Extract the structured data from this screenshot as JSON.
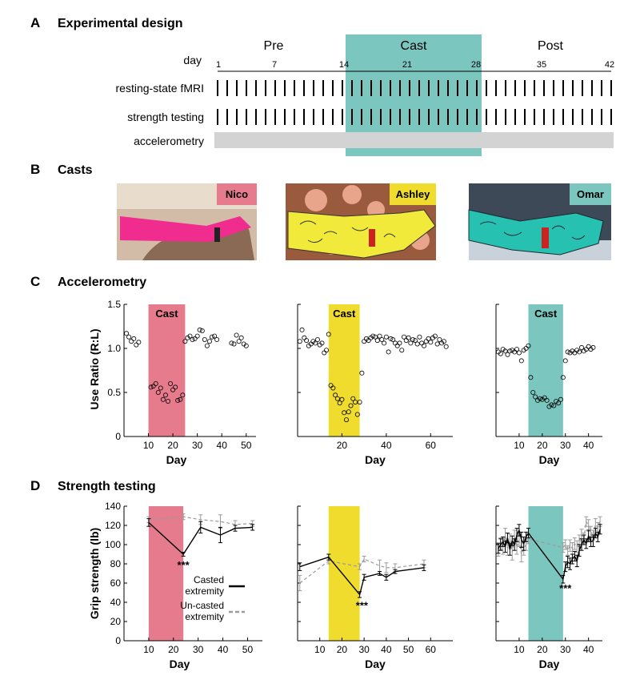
{
  "colors": {
    "nico": "#e77b8e",
    "ashley": "#efdc2c",
    "omar": "#7bc6bf",
    "accel_bar": "#d3d3d3",
    "casted": "#000000",
    "uncasted": "#9a9a9a"
  },
  "panel_a": {
    "letter": "A",
    "title": "Experimental design",
    "phases": [
      "Pre",
      "Cast",
      "Post"
    ],
    "day_label": "day",
    "day_ticks": [
      "1",
      "7",
      "14",
      "21",
      "28",
      "35",
      "42"
    ],
    "rows": [
      "resting-state fMRI",
      "strength testing",
      "accelerometry"
    ]
  },
  "panel_b": {
    "letter": "B",
    "title": "Casts",
    "names": [
      "Nico",
      "Ashley",
      "Omar"
    ]
  },
  "panel_c": {
    "letter": "C",
    "title": "Accelerometry",
    "ylabel": "Use Ratio (R:L)",
    "xlabel": "Day",
    "cast_label": "Cast"
  },
  "panel_d": {
    "letter": "D",
    "title": "Strength testing",
    "ylabel": "Grip strength (lb)",
    "xlabel": "Day",
    "legend_casted": [
      "Casted",
      "extremity"
    ],
    "legend_uncasted": [
      "Un-casted",
      "extremity"
    ],
    "signif": "***"
  },
  "chart_data": [
    {
      "type": "scatter",
      "title": "Accelerometry - Nico",
      "xlabel": "Day",
      "ylabel": "Use Ratio (R:L)",
      "xlim": [
        0,
        54
      ],
      "ylim": [
        0,
        1.5
      ],
      "xticks": [
        10,
        20,
        30,
        40,
        50
      ],
      "yticks": [
        0,
        0.5,
        1.0,
        1.5
      ],
      "cast_period": [
        10,
        25
      ],
      "x": [
        1,
        2,
        3,
        4,
        5,
        6,
        11,
        12,
        13,
        14,
        15,
        16,
        17,
        18,
        19,
        20,
        21,
        22,
        23,
        24,
        25,
        26,
        27,
        28,
        29,
        30,
        31,
        32,
        33,
        34,
        35,
        36,
        37,
        38,
        44,
        45,
        46,
        47,
        48,
        49,
        50
      ],
      "y": [
        1.17,
        1.13,
        1.08,
        1.11,
        1.04,
        1.07,
        0.56,
        0.57,
        0.6,
        0.5,
        0.55,
        0.42,
        0.47,
        0.4,
        0.6,
        0.53,
        0.56,
        0.41,
        0.42,
        0.47,
        1.08,
        1.12,
        1.14,
        1.1,
        1.11,
        1.14,
        1.21,
        1.2,
        1.1,
        1.03,
        1.08,
        1.13,
        1.14,
        1.1,
        1.06,
        1.05,
        1.15,
        1.08,
        1.12,
        1.05,
        1.03
      ]
    },
    {
      "type": "scatter",
      "title": "Accelerometry - Ashley",
      "xlabel": "Day",
      "ylabel": "Use Ratio (R:L)",
      "xlim": [
        0,
        70
      ],
      "ylim": [
        0,
        1.5
      ],
      "xticks": [
        20,
        40,
        60
      ],
      "yticks": [
        0,
        0.5,
        1.0,
        1.5
      ],
      "cast_period": [
        14,
        28
      ],
      "x": [
        1,
        2,
        3,
        4,
        5,
        6,
        7,
        8,
        9,
        10,
        11,
        12,
        13,
        14,
        15,
        16,
        17,
        18,
        19,
        20,
        21,
        22,
        23,
        24,
        25,
        26,
        27,
        28,
        29,
        30,
        31,
        32,
        33,
        34,
        35,
        36,
        37,
        38,
        39,
        40,
        41,
        42,
        43,
        44,
        45,
        46,
        47,
        48,
        49,
        50,
        51,
        52,
        53,
        54,
        55,
        56,
        57,
        58,
        59,
        60,
        61,
        62,
        63,
        64,
        65,
        66,
        67
      ],
      "y": [
        1.08,
        1.21,
        1.12,
        1.09,
        1.03,
        1.05,
        1.08,
        1.06,
        1.1,
        1.04,
        1.06,
        0.95,
        0.98,
        1.16,
        0.58,
        0.55,
        0.47,
        0.43,
        0.38,
        0.42,
        0.27,
        0.19,
        0.28,
        0.35,
        0.43,
        0.39,
        0.25,
        0.39,
        0.72,
        1.08,
        1.11,
        1.09,
        1.12,
        1.14,
        1.13,
        1.09,
        1.14,
        1.1,
        1.06,
        1.13,
        0.96,
        1.11,
        1.1,
        1.06,
        1.03,
        1.06,
        0.98,
        1.13,
        1.09,
        1.12,
        1.06,
        1.1,
        1.09,
        1.05,
        1.13,
        1.06,
        1.03,
        1.08,
        1.11,
        1.07,
        1.12,
        1.14,
        1.05,
        1.1,
        1.06,
        1.08,
        1.02
      ]
    },
    {
      "type": "scatter",
      "title": "Accelerometry - Omar",
      "xlabel": "Day",
      "ylabel": "Use Ratio (R:L)",
      "xlim": [
        0,
        46
      ],
      "ylim": [
        0,
        1.5
      ],
      "xticks": [
        10,
        20,
        30,
        40
      ],
      "yticks": [
        0,
        0.5,
        1.0,
        1.5
      ],
      "cast_period": [
        14,
        29
      ],
      "x": [
        1,
        2,
        3,
        4,
        5,
        6,
        7,
        8,
        9,
        10,
        11,
        12,
        13,
        14,
        15,
        16,
        17,
        18,
        19,
        20,
        21,
        22,
        23,
        24,
        25,
        26,
        27,
        28,
        29,
        30,
        31,
        32,
        33,
        34,
        35,
        36,
        37,
        38,
        39,
        40,
        41,
        42
      ],
      "y": [
        0.96,
        0.94,
        0.99,
        0.97,
        0.93,
        0.97,
        0.98,
        0.96,
        0.99,
        0.95,
        0.86,
        0.98,
        1.0,
        1.03,
        0.67,
        0.5,
        0.45,
        0.41,
        0.43,
        0.42,
        0.44,
        0.41,
        0.34,
        0.36,
        0.35,
        0.4,
        0.38,
        0.42,
        0.67,
        0.86,
        0.96,
        0.95,
        0.97,
        0.95,
        0.98,
        0.96,
        1.01,
        0.97,
        0.99,
        1.02,
        0.99,
        1.01
      ]
    },
    {
      "type": "line",
      "title": "Strength testing - Nico",
      "xlabel": "Day",
      "ylabel": "Grip strength (lb)",
      "xlim": [
        0,
        56
      ],
      "ylim": [
        0,
        140
      ],
      "xticks": [
        10,
        20,
        30,
        40,
        50
      ],
      "yticks": [
        0,
        20,
        40,
        60,
        80,
        100,
        120,
        140
      ],
      "cast_period": [
        10,
        24
      ],
      "series": [
        {
          "name": "Casted extremity",
          "style": "solid",
          "x": [
            10,
            24,
            31,
            39,
            45,
            52
          ],
          "y": [
            123,
            90,
            118,
            110,
            117,
            118
          ],
          "err": [
            4,
            2,
            6,
            8,
            3,
            3
          ]
        },
        {
          "name": "Un-casted extremity",
          "style": "dashed",
          "x": [
            10,
            24,
            31,
            39,
            45,
            52
          ],
          "y": [
            126,
            129,
            126,
            124,
            121,
            122
          ],
          "err": [
            3,
            3,
            5,
            7,
            4,
            3
          ]
        }
      ],
      "annotations": [
        {
          "text": "***",
          "x": 24,
          "y": 75
        }
      ]
    },
    {
      "type": "line",
      "title": "Strength testing - Ashley",
      "xlabel": "Day",
      "ylabel": "Grip strength (lb)",
      "xlim": [
        0,
        70
      ],
      "ylim": [
        0,
        140
      ],
      "xticks": [
        10,
        20,
        30,
        40,
        50,
        60
      ],
      "yticks": [
        0,
        20,
        40,
        60,
        80,
        100,
        120,
        140
      ],
      "cast_period": [
        14,
        28
      ],
      "series": [
        {
          "name": "Casted extremity",
          "style": "solid",
          "x": [
            1,
            14,
            28,
            30,
            37,
            40,
            44,
            57
          ],
          "y": [
            77,
            87,
            48,
            66,
            70,
            66,
            72,
            76
          ],
          "err": [
            4,
            3,
            3,
            3,
            2,
            3,
            2,
            3
          ]
        },
        {
          "name": "Un-casted extremity",
          "style": "dashed",
          "x": [
            1,
            14,
            28,
            30,
            37,
            40,
            44,
            57
          ],
          "y": [
            60,
            83,
            77,
            85,
            78,
            76,
            76,
            80
          ],
          "err": [
            8,
            3,
            3,
            3,
            6,
            5,
            4,
            4
          ]
        }
      ],
      "annotations": [
        {
          "text": "***",
          "x": 29,
          "y": 33
        }
      ]
    },
    {
      "type": "line",
      "title": "Strength testing - Omar",
      "xlabel": "Day",
      "ylabel": "Grip strength (lb)",
      "xlim": [
        0,
        46
      ],
      "ylim": [
        0,
        140
      ],
      "xticks": [
        10,
        20,
        30,
        40
      ],
      "yticks": [
        0,
        20,
        40,
        60,
        80,
        100,
        120,
        140
      ],
      "cast_period": [
        14,
        29
      ],
      "series": [
        {
          "name": "Casted extremity",
          "style": "solid",
          "x": [
            1,
            2,
            3,
            4,
            5,
            6,
            7,
            8,
            9,
            10,
            11,
            12,
            13,
            14,
            29,
            30,
            31,
            32,
            33,
            34,
            35,
            36,
            37,
            38,
            39,
            40,
            41,
            42,
            43,
            44,
            45
          ],
          "y": [
            96,
            100,
            103,
            98,
            107,
            95,
            104,
            100,
            110,
            115,
            105,
            101,
            108,
            112,
            64,
            77,
            82,
            80,
            85,
            88,
            83,
            94,
            100,
            105,
            101,
            109,
            103,
            104,
            112,
            108,
            116
          ],
          "err": [
            5,
            6,
            5,
            6,
            5,
            6,
            5,
            6,
            7,
            6,
            8,
            7,
            5,
            5,
            4,
            5,
            6,
            6,
            5,
            5,
            6,
            6,
            6,
            5,
            5,
            6,
            5,
            6,
            5,
            5,
            5
          ]
        },
        {
          "name": "Un-casted extremity",
          "style": "dashed",
          "x": [
            1,
            2,
            3,
            4,
            5,
            6,
            7,
            8,
            9,
            10,
            11,
            12,
            13,
            14,
            29,
            30,
            31,
            32,
            33,
            34,
            35,
            36,
            37,
            38,
            39,
            40,
            41,
            42,
            43,
            44,
            45
          ],
          "y": [
            95,
            101,
            98,
            110,
            96,
            105,
            92,
            108,
            97,
            104,
            90,
            96,
            100,
            106,
            97,
            100,
            94,
            99,
            96,
            101,
            98,
            104,
            110,
            106,
            124,
            120,
            113,
            110,
            121,
            118,
            124
          ],
          "err": [
            7,
            6,
            8,
            7,
            7,
            6,
            8,
            7,
            7,
            6,
            8,
            7,
            6,
            5,
            5,
            5,
            5,
            6,
            6,
            6,
            6,
            6,
            6,
            6,
            5,
            6,
            6,
            5,
            6,
            5,
            5
          ]
        }
      ],
      "annotations": [
        {
          "text": "***",
          "x": 30,
          "y": 51
        }
      ]
    }
  ]
}
